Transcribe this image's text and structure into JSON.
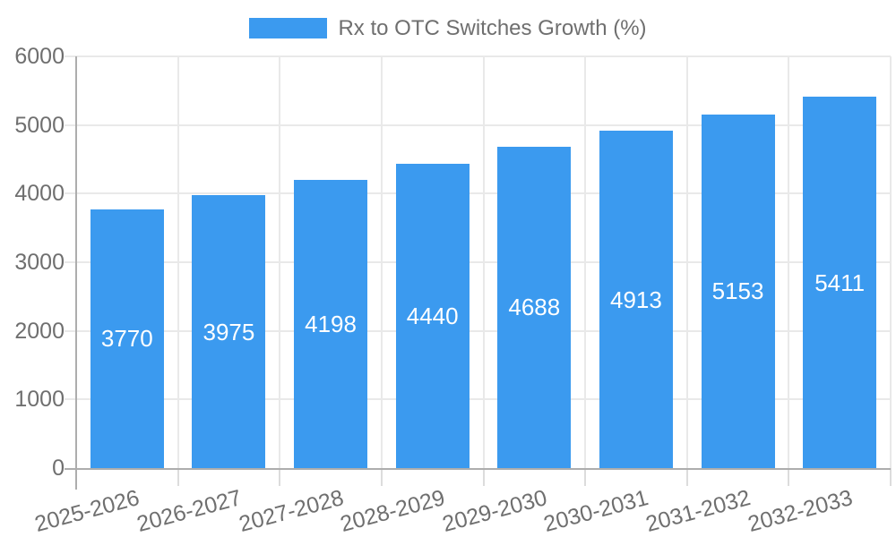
{
  "legend": {
    "label": "Rx to OTC Switches Growth (%)"
  },
  "chart_data": {
    "type": "bar",
    "title": "",
    "categories": [
      "2025-2026",
      "2026-2027",
      "2027-2028",
      "2028-2029",
      "2029-2030",
      "2030-2031",
      "2031-2032",
      "2032-2033"
    ],
    "values": [
      3770,
      3975,
      4198,
      4440,
      4688,
      4913,
      5153,
      5411
    ],
    "series": [
      {
        "name": "Rx to OTC Switches Growth (%)",
        "values": [
          3770,
          3975,
          4198,
          4440,
          4688,
          4913,
          5153,
          5411
        ]
      }
    ],
    "value_labels": [
      "3770",
      "3975",
      "4198",
      "4440",
      "4688",
      "4913",
      "5153",
      "5411"
    ],
    "value_label_position": "inside-center",
    "xlabel": "",
    "ylabel": "",
    "ylim": [
      0,
      6000
    ],
    "yticks": [
      0,
      1000,
      2000,
      3000,
      4000,
      5000,
      6000
    ],
    "grid": true,
    "legend_position": "top-center"
  },
  "colors": {
    "bar": "#3B9AEF",
    "grid": "#E9E9E9",
    "axis": "#ADADAD",
    "tick_text": "#6F6F6F",
    "value_text": "#FFFFFF",
    "background": "#FFFFFF"
  }
}
